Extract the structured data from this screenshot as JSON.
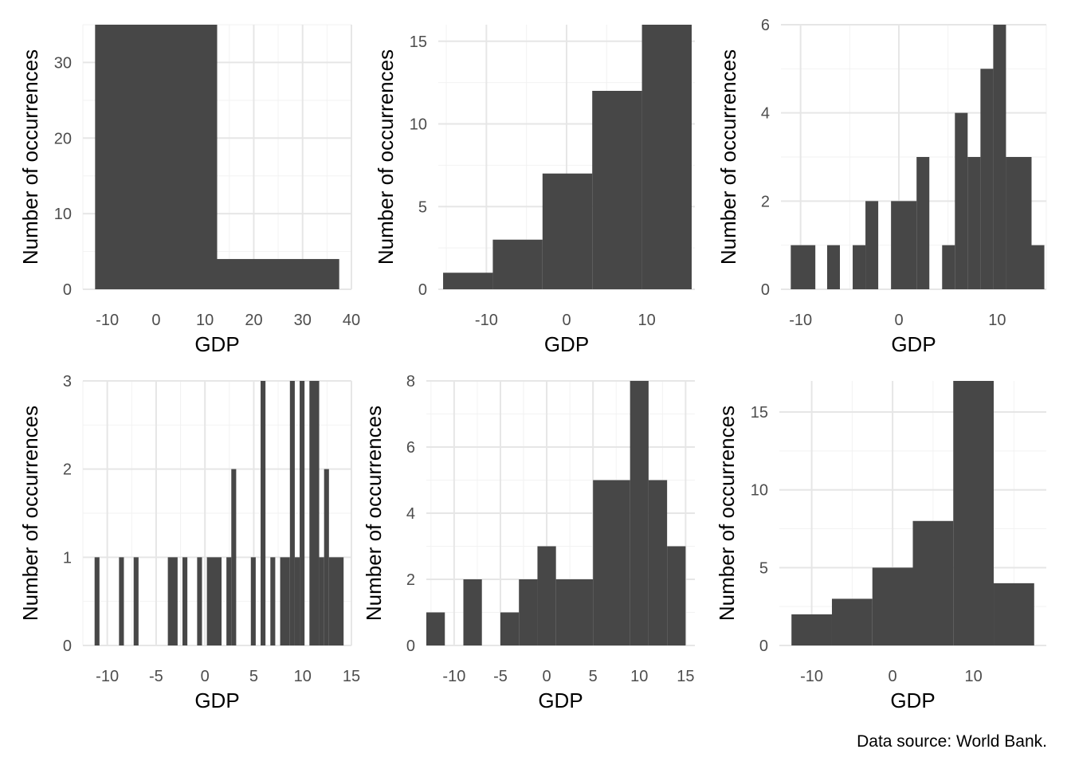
{
  "caption": "Data source: World Bank.",
  "colors": {
    "bar": "#474747",
    "grid_major": "#e6e6e6",
    "grid_minor": "#f2f2f2"
  },
  "chart_data": [
    {
      "type": "histogram",
      "xlabel": "GDP",
      "ylabel": "Number of occurrences",
      "xlim": [
        -15,
        40
      ],
      "ylim": [
        0,
        35
      ],
      "xticks": [
        -10,
        0,
        10,
        20,
        30,
        40
      ],
      "yticks": [
        0,
        10,
        20,
        30
      ],
      "bins": [
        {
          "x0": -12.5,
          "x1": 12.5,
          "count": 35
        },
        {
          "x0": 12.5,
          "x1": 37.5,
          "count": 4
        }
      ]
    },
    {
      "type": "histogram",
      "xlabel": "GDP",
      "ylabel": "Number of occurrences",
      "xlim": [
        -16,
        16
      ],
      "ylim": [
        0,
        16
      ],
      "xticks": [
        -10,
        0,
        10
      ],
      "yticks": [
        0,
        5,
        10,
        15
      ],
      "bins": [
        {
          "x0": -15.4,
          "x1": -9.2,
          "count": 1
        },
        {
          "x0": -9.2,
          "x1": -3.0,
          "count": 3
        },
        {
          "x0": -3.0,
          "x1": 3.2,
          "count": 7
        },
        {
          "x0": 3.2,
          "x1": 9.4,
          "count": 12
        },
        {
          "x0": 9.4,
          "x1": 15.6,
          "count": 16
        }
      ]
    },
    {
      "type": "histogram",
      "xlabel": "GDP",
      "ylabel": "Number of occurrences",
      "xlim": [
        -12,
        15
      ],
      "ylim": [
        0,
        6
      ],
      "xticks": [
        -10,
        0,
        10
      ],
      "yticks": [
        0,
        2,
        4,
        6
      ],
      "bins": [
        {
          "x0": -11.0,
          "x1": -8.5,
          "count": 1
        },
        {
          "x0": -7.3,
          "x1": -6.0,
          "count": 1
        },
        {
          "x0": -4.7,
          "x1": -3.4,
          "count": 1
        },
        {
          "x0": -3.4,
          "x1": -2.1,
          "count": 2
        },
        {
          "x0": -0.8,
          "x1": 1.8,
          "count": 2
        },
        {
          "x0": 1.8,
          "x1": 3.1,
          "count": 3
        },
        {
          "x0": 4.4,
          "x1": 5.7,
          "count": 1
        },
        {
          "x0": 5.7,
          "x1": 7.0,
          "count": 4
        },
        {
          "x0": 7.0,
          "x1": 8.3,
          "count": 3
        },
        {
          "x0": 8.3,
          "x1": 9.6,
          "count": 5
        },
        {
          "x0": 9.6,
          "x1": 10.9,
          "count": 6
        },
        {
          "x0": 10.9,
          "x1": 13.5,
          "count": 3
        },
        {
          "x0": 13.5,
          "x1": 14.8,
          "count": 1
        }
      ]
    },
    {
      "type": "histogram",
      "xlabel": "GDP",
      "ylabel": "Number of occurrences",
      "xlim": [
        -12.5,
        15
      ],
      "ylim": [
        0,
        3
      ],
      "xticks": [
        -10,
        -5,
        0,
        5,
        10,
        15
      ],
      "yticks": [
        0,
        1,
        2,
        3
      ],
      "bins": [
        {
          "x0": -11.3,
          "x1": -10.8,
          "count": 1
        },
        {
          "x0": -8.8,
          "x1": -8.3,
          "count": 1
        },
        {
          "x0": -7.3,
          "x1": -6.8,
          "count": 1
        },
        {
          "x0": -3.8,
          "x1": -2.8,
          "count": 1
        },
        {
          "x0": -2.3,
          "x1": -1.8,
          "count": 1
        },
        {
          "x0": -0.8,
          "x1": -0.3,
          "count": 1
        },
        {
          "x0": 0.2,
          "x1": 1.7,
          "count": 1
        },
        {
          "x0": 2.2,
          "x1": 2.7,
          "count": 1
        },
        {
          "x0": 2.7,
          "x1": 3.2,
          "count": 2
        },
        {
          "x0": 4.7,
          "x1": 5.2,
          "count": 1
        },
        {
          "x0": 5.7,
          "x1": 6.2,
          "count": 3
        },
        {
          "x0": 6.7,
          "x1": 7.2,
          "count": 1
        },
        {
          "x0": 7.7,
          "x1": 8.7,
          "count": 1
        },
        {
          "x0": 8.7,
          "x1": 9.2,
          "count": 3
        },
        {
          "x0": 9.2,
          "x1": 9.7,
          "count": 1
        },
        {
          "x0": 9.7,
          "x1": 10.2,
          "count": 3
        },
        {
          "x0": 10.7,
          "x1": 11.7,
          "count": 3
        },
        {
          "x0": 11.7,
          "x1": 12.2,
          "count": 1
        },
        {
          "x0": 12.2,
          "x1": 12.7,
          "count": 2
        },
        {
          "x0": 12.7,
          "x1": 14.2,
          "count": 1
        }
      ]
    },
    {
      "type": "histogram",
      "xlabel": "GDP",
      "ylabel": "Number of occurrences",
      "xlim": [
        -13,
        16
      ],
      "ylim": [
        0,
        8
      ],
      "xticks": [
        -10,
        -5,
        0,
        5,
        10,
        15
      ],
      "yticks": [
        0,
        2,
        4,
        6,
        8
      ],
      "bins": [
        {
          "x0": -13.0,
          "x1": -11.0,
          "count": 1
        },
        {
          "x0": -9.0,
          "x1": -7.0,
          "count": 2
        },
        {
          "x0": -5.0,
          "x1": -3.0,
          "count": 1
        },
        {
          "x0": -3.0,
          "x1": -1.0,
          "count": 2
        },
        {
          "x0": -1.0,
          "x1": 1.0,
          "count": 3
        },
        {
          "x0": 1.0,
          "x1": 5.0,
          "count": 2
        },
        {
          "x0": 5.0,
          "x1": 9.0,
          "count": 5
        },
        {
          "x0": 9.0,
          "x1": 11.0,
          "count": 8
        },
        {
          "x0": 11.0,
          "x1": 13.0,
          "count": 5
        },
        {
          "x0": 13.0,
          "x1": 15.0,
          "count": 3
        }
      ]
    },
    {
      "type": "histogram",
      "xlabel": "GDP",
      "ylabel": "Number of occurrences",
      "xlim": [
        -14,
        19
      ],
      "ylim": [
        0,
        17
      ],
      "xticks": [
        -10,
        0,
        10
      ],
      "yticks": [
        0,
        5,
        10,
        15
      ],
      "bins": [
        {
          "x0": -12.5,
          "x1": -7.5,
          "count": 2
        },
        {
          "x0": -7.5,
          "x1": -2.5,
          "count": 3
        },
        {
          "x0": -2.5,
          "x1": 2.5,
          "count": 5
        },
        {
          "x0": 2.5,
          "x1": 7.5,
          "count": 8
        },
        {
          "x0": 7.5,
          "x1": 12.5,
          "count": 17
        },
        {
          "x0": 12.5,
          "x1": 17.5,
          "count": 4
        }
      ]
    }
  ]
}
